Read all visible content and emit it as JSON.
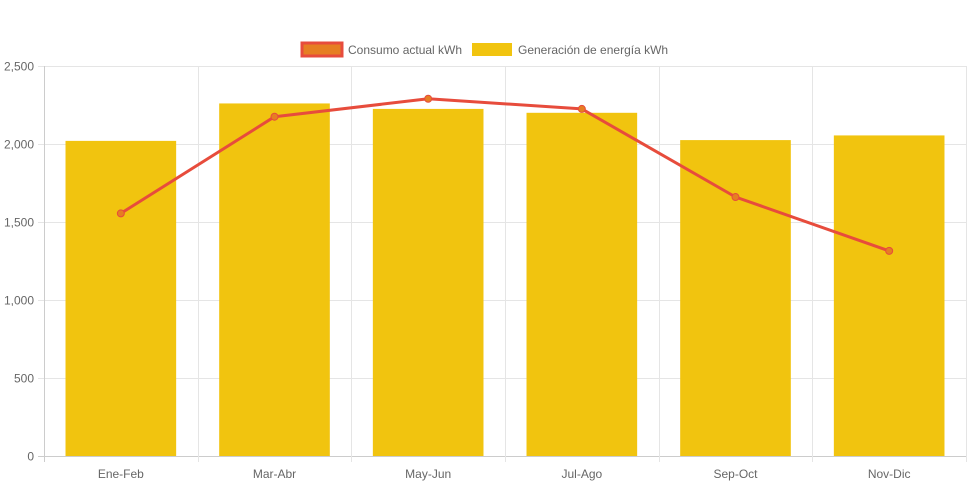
{
  "chart_data": {
    "type": "bar",
    "categories": [
      "Ene-Feb",
      "Mar-Abr",
      "May-Jun",
      "Jul-Ago",
      "Sep-Oct",
      "Nov-Dic"
    ],
    "series": [
      {
        "name": "Generación de energía kWh",
        "type": "bar",
        "values": [
          2020,
          2260,
          2225,
          2200,
          2025,
          2055
        ],
        "color": "#f1c40f"
      },
      {
        "name": "Consumo actual kWh",
        "type": "line",
        "values": [
          1555,
          2175,
          2290,
          2225,
          1660,
          1315
        ],
        "color": "#e74c3c",
        "fill": "#e67e22"
      }
    ],
    "ylim": [
      0,
      2500
    ],
    "yticks": [
      "0",
      "500",
      "1,000",
      "1,500",
      "2,000",
      "2,500"
    ],
    "ytick_values": [
      0,
      500,
      1000,
      1500,
      2000,
      2500
    ],
    "grid": true,
    "legend": "top-center"
  }
}
